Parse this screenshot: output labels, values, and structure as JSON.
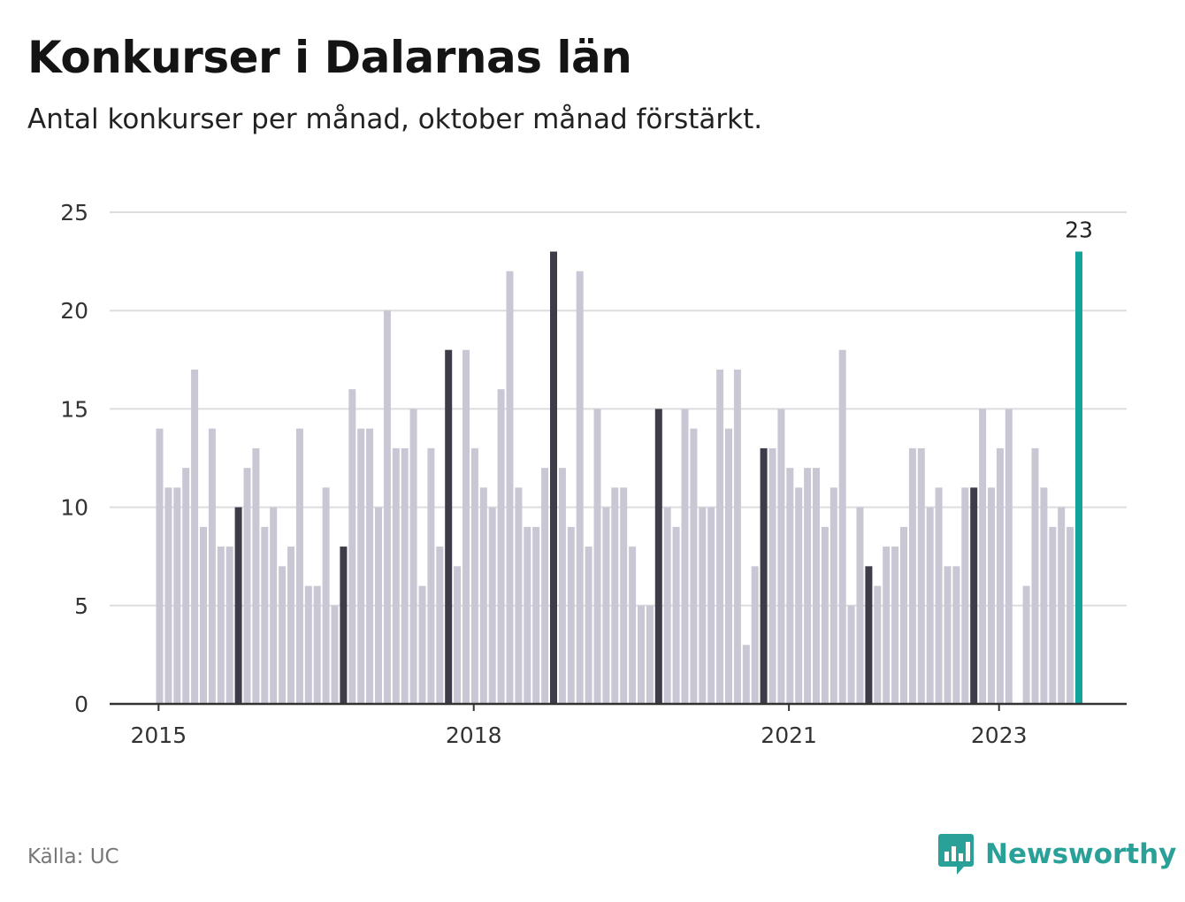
{
  "header": {
    "title": "Konkurser i Dalarnas län",
    "subtitle": "Antal konkurser per månad, oktober månad förstärkt."
  },
  "footer": {
    "source": "Källa: UC",
    "brand": "Newsworthy"
  },
  "colors": {
    "bar": "#c8c7d3",
    "highlight_month": "#3d3c48",
    "latest": "#14a39a",
    "grid": "#dddddd",
    "axis": "#333333",
    "brand": "#2aa198"
  },
  "chart_data": {
    "type": "bar",
    "start": "2015-01",
    "highlight_month": "oktober",
    "values": [
      14,
      11,
      11,
      12,
      17,
      9,
      14,
      8,
      8,
      10,
      12,
      13,
      9,
      10,
      7,
      8,
      14,
      6,
      6,
      11,
      5,
      8,
      16,
      14,
      14,
      10,
      20,
      13,
      13,
      15,
      6,
      13,
      8,
      18,
      7,
      18,
      13,
      11,
      10,
      16,
      22,
      11,
      9,
      9,
      12,
      23,
      12,
      9,
      22,
      8,
      15,
      10,
      11,
      11,
      8,
      5,
      5,
      15,
      10,
      9,
      15,
      14,
      10,
      10,
      17,
      14,
      17,
      3,
      7,
      13,
      13,
      15,
      12,
      11,
      12,
      12,
      9,
      11,
      18,
      5,
      10,
      7,
      6,
      8,
      8,
      9,
      13,
      13,
      10,
      11,
      7,
      7,
      11,
      11,
      15,
      11,
      13,
      15,
      0,
      6,
      13,
      11,
      9,
      10,
      9,
      23
    ],
    "ylim": [
      0,
      25
    ],
    "yticks": [
      "0",
      "5",
      "10",
      "15",
      "20",
      "25"
    ],
    "xticks": [
      {
        "label": "2015",
        "index": 0
      },
      {
        "label": "2018",
        "index": 36
      },
      {
        "label": "2021",
        "index": 72
      },
      {
        "label": "2023",
        "index": 96
      }
    ],
    "last_value_label": "23"
  }
}
